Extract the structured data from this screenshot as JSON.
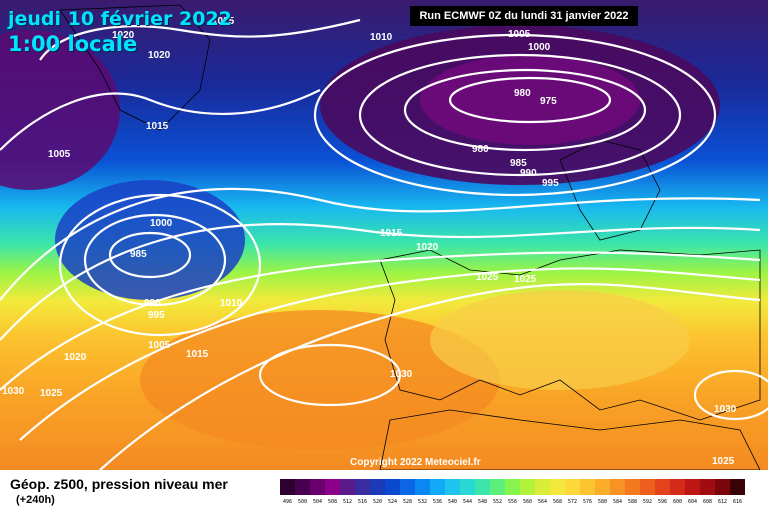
{
  "header": {
    "date": "jeudi 10 février 2022",
    "time": "1:00 locale",
    "run": "Run ECMWF 0Z du lundi 31 janvier 2022"
  },
  "footer": {
    "product": "Géop. z500, pression niveau mer",
    "lead": "(+240h)",
    "copyright": "Copyright 2022 Meteociel.fr"
  },
  "isobar_labels": [
    "1025",
    "1020",
    "1020",
    "1010",
    "1005",
    "1000",
    "1015",
    "1005",
    "980",
    "975",
    "980",
    "985",
    "990",
    "995",
    "1000",
    "985",
    "1015",
    "1020",
    "1025",
    "1025",
    "990",
    "995",
    "1010",
    "1005",
    "1015",
    "1020",
    "1030",
    "1030",
    "1025",
    "1030",
    "1025"
  ],
  "scale": {
    "values": [
      "496",
      "500",
      "504",
      "508",
      "512",
      "516",
      "520",
      "524",
      "528",
      "532",
      "536",
      "540",
      "544",
      "548",
      "552",
      "556",
      "560",
      "564",
      "568",
      "572",
      "576",
      "580",
      "584",
      "588",
      "592",
      "596",
      "600",
      "604",
      "608",
      "612",
      "616"
    ],
    "colors": [
      "#2d0030",
      "#4a0050",
      "#6a006e",
      "#8a008a",
      "#5a1a8a",
      "#3a2ca0",
      "#1a3ab8",
      "#0a48d0",
      "#0a66e6",
      "#0a88f2",
      "#12aaf6",
      "#1ec4ee",
      "#28d8d2",
      "#3ce6aa",
      "#5cf07a",
      "#86f44c",
      "#b2f23a",
      "#d8ee3a",
      "#f4e83c",
      "#fcd838",
      "#fcc430",
      "#fbac28",
      "#f89222",
      "#f4781e",
      "#ee5e1c",
      "#e4421a",
      "#d42a18",
      "#be1614",
      "#a00c10",
      "#7a060c",
      "#3a0206"
    ]
  }
}
